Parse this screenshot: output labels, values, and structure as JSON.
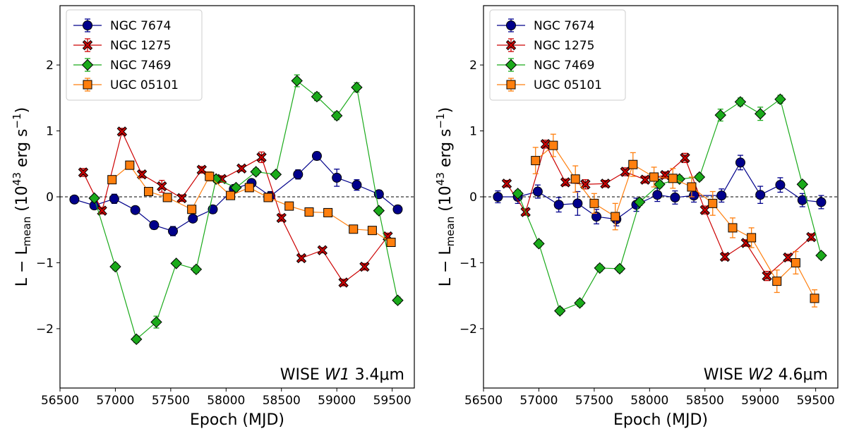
{
  "chart_data": [
    {
      "type": "line",
      "title": "",
      "panel_label": {
        "prefix": "WISE ",
        "band": "W1",
        "suffix": " 3.4μm"
      },
      "xlabel": "Epoch (MJD)",
      "ylabel": {
        "prefix": "L − L",
        "sub": "mean",
        "unit_open": " (10",
        "exp": "43",
        "unit_mid": " erg s",
        "exp2": "−1",
        "unit_close": ")"
      },
      "xlim": [
        56500,
        59700
      ],
      "ylim": [
        -2.9,
        2.9
      ],
      "xticks": [
        56500,
        57000,
        57500,
        58000,
        58500,
        59000,
        59500
      ],
      "yticks": [
        -2,
        -1,
        0,
        1,
        2
      ],
      "ytick_labels": [
        "−2",
        "−1",
        "0",
        "1",
        "2"
      ],
      "reference_line": 0,
      "legend_position": "top-left",
      "series": [
        {
          "name": "NGC 7674",
          "color": "#00008b",
          "marker": "circle",
          "x": [
            56630,
            56810,
            56990,
            57180,
            57350,
            57520,
            57700,
            57880,
            58070,
            58230,
            58400,
            58650,
            58820,
            59000,
            59180,
            59380,
            59550
          ],
          "y": [
            -0.04,
            -0.13,
            -0.03,
            -0.2,
            -0.43,
            -0.52,
            -0.33,
            -0.19,
            0.12,
            0.21,
            0.01,
            0.34,
            0.62,
            0.29,
            0.18,
            0.04,
            -0.19
          ],
          "err": [
            0.03,
            0.05,
            0.07,
            0.05,
            0.06,
            0.07,
            0.05,
            0.06,
            0.06,
            0.05,
            0.07,
            0.07,
            0.06,
            0.13,
            0.08,
            0.06,
            0.06
          ]
        },
        {
          "name": "NGC 1275",
          "color": "#cc0000",
          "marker": "x",
          "x": [
            56710,
            56880,
            57060,
            57240,
            57420,
            57600,
            57780,
            57960,
            58140,
            58320,
            58500,
            58680,
            58870,
            59060,
            59250,
            59460
          ],
          "y": [
            0.37,
            -0.21,
            0.99,
            0.34,
            0.16,
            -0.02,
            0.41,
            0.27,
            0.43,
            0.6,
            -0.32,
            -0.93,
            -0.81,
            -1.3,
            -1.06,
            -0.6
          ],
          "err": [
            0.06,
            0.05,
            0.05,
            0.05,
            0.09,
            0.05,
            0.05,
            0.05,
            0.04,
            0.08,
            0.05,
            0.04,
            0.04,
            0.05,
            0.05,
            0.05
          ]
        },
        {
          "name": "NGC 7469",
          "color": "#1aaa1a",
          "marker": "diamond",
          "x": [
            56810,
            57000,
            57190,
            57370,
            57550,
            57730,
            57910,
            58090,
            58270,
            58450,
            58640,
            58820,
            59000,
            59180,
            59380,
            59550
          ],
          "y": [
            -0.02,
            -1.06,
            -2.16,
            -1.9,
            -1.01,
            -1.1,
            0.27,
            0.14,
            0.38,
            0.34,
            1.76,
            1.52,
            1.23,
            1.66,
            -0.21,
            -1.57
          ],
          "err": [
            0.04,
            0.05,
            0.05,
            0.09,
            0.04,
            0.05,
            0.05,
            0.04,
            0.05,
            0.04,
            0.09,
            0.06,
            0.06,
            0.07,
            0.05,
            0.05
          ]
        },
        {
          "name": "UGC 05101",
          "color": "#ff7f0e",
          "marker": "square",
          "x": [
            56970,
            57130,
            57300,
            57470,
            57690,
            57850,
            58040,
            58210,
            58380,
            58570,
            58750,
            58920,
            59150,
            59320,
            59490
          ],
          "y": [
            0.26,
            0.48,
            0.08,
            -0.01,
            -0.19,
            0.31,
            0.02,
            0.14,
            -0.01,
            -0.14,
            -0.23,
            -0.24,
            -0.49,
            -0.51,
            -0.69
          ],
          "err": [
            0.05,
            0.06,
            0.05,
            0.05,
            0.06,
            0.07,
            0.06,
            0.05,
            0.06,
            0.06,
            0.05,
            0.05,
            0.05,
            0.05,
            0.05
          ]
        }
      ]
    },
    {
      "type": "line",
      "title": "",
      "panel_label": {
        "prefix": "WISE ",
        "band": "W2",
        "suffix": " 4.6μm"
      },
      "xlabel": "Epoch (MJD)",
      "ylabel": {
        "prefix": "L − L",
        "sub": "mean",
        "unit_open": " (10",
        "exp": "43",
        "unit_mid": " erg s",
        "exp2": "−1",
        "unit_close": ")"
      },
      "xlim": [
        56500,
        59700
      ],
      "ylim": [
        -2.9,
        2.9
      ],
      "xticks": [
        56500,
        57000,
        57500,
        58000,
        58500,
        59000,
        59500
      ],
      "yticks": [
        -2,
        -1,
        0,
        1,
        2
      ],
      "ytick_labels": [
        "−2",
        "−1",
        "0",
        "1",
        "2"
      ],
      "reference_line": 0,
      "legend_position": "top-left",
      "series": [
        {
          "name": "NGC 7674",
          "color": "#00008b",
          "marker": "circle",
          "x": [
            56630,
            56810,
            56990,
            57180,
            57350,
            57520,
            57700,
            57880,
            58070,
            58230,
            58400,
            58650,
            58820,
            59000,
            59180,
            59380,
            59550
          ],
          "y": [
            0.0,
            0.0,
            0.08,
            -0.12,
            -0.1,
            -0.3,
            -0.34,
            -0.12,
            0.03,
            -0.01,
            0.02,
            0.02,
            0.52,
            0.03,
            0.18,
            -0.05,
            -0.08
          ],
          "err": [
            0.09,
            0.1,
            0.1,
            0.11,
            0.18,
            0.11,
            0.1,
            0.1,
            0.1,
            0.1,
            0.1,
            0.1,
            0.11,
            0.13,
            0.11,
            0.1,
            0.1
          ]
        },
        {
          "name": "NGC 1275",
          "color": "#cc0000",
          "marker": "x",
          "x": [
            56710,
            56880,
            57060,
            57240,
            57420,
            57600,
            57780,
            57960,
            58140,
            58320,
            58500,
            58680,
            58870,
            59060,
            59250,
            59460
          ],
          "y": [
            0.2,
            -0.23,
            0.8,
            0.22,
            0.19,
            0.2,
            0.38,
            0.26,
            0.33,
            0.59,
            -0.2,
            -0.91,
            -0.7,
            -1.2,
            -0.92,
            -0.61
          ],
          "err": [
            0.05,
            0.05,
            0.06,
            0.05,
            0.07,
            0.05,
            0.06,
            0.05,
            0.05,
            0.07,
            0.06,
            0.05,
            0.05,
            0.07,
            0.05,
            0.05
          ]
        },
        {
          "name": "NGC 7469",
          "color": "#1aaa1a",
          "marker": "diamond",
          "x": [
            56810,
            57000,
            57190,
            57370,
            57550,
            57730,
            57910,
            58090,
            58270,
            58450,
            58640,
            58820,
            59000,
            59180,
            59380,
            59550
          ],
          "y": [
            0.05,
            -0.71,
            -1.73,
            -1.61,
            -1.08,
            -1.09,
            -0.08,
            0.19,
            0.27,
            0.3,
            1.24,
            1.44,
            1.26,
            1.48,
            0.19,
            -0.89
          ],
          "err": [
            0.05,
            0.05,
            0.05,
            0.05,
            0.05,
            0.05,
            0.05,
            0.05,
            0.05,
            0.05,
            0.09,
            0.06,
            0.1,
            0.06,
            0.05,
            0.05
          ]
        },
        {
          "name": "UGC 05101",
          "color": "#ff7f0e",
          "marker": "square",
          "x": [
            56970,
            57130,
            57330,
            57500,
            57690,
            57850,
            58040,
            58210,
            58380,
            58570,
            58750,
            58920,
            59150,
            59320,
            59490
          ],
          "y": [
            0.55,
            0.78,
            0.27,
            -0.1,
            -0.3,
            0.49,
            0.3,
            0.28,
            0.15,
            -0.1,
            -0.47,
            -0.62,
            -1.28,
            -1.0,
            -1.54
          ],
          "err": [
            0.2,
            0.17,
            0.2,
            0.15,
            0.2,
            0.18,
            0.15,
            0.15,
            0.15,
            0.18,
            0.15,
            0.15,
            0.17,
            0.17,
            0.13
          ]
        }
      ]
    }
  ]
}
